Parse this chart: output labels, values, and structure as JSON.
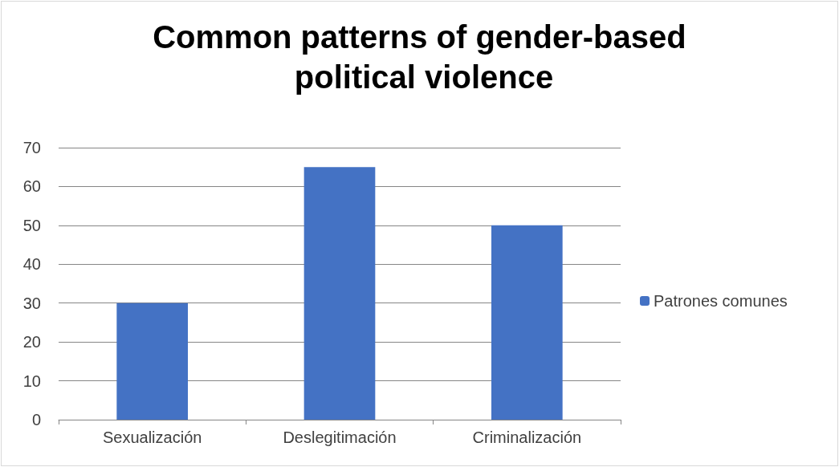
{
  "chart_data": {
    "type": "bar",
    "title": "Common patterns of gender-based political violence",
    "categories": [
      "Sexualización",
      "Deslegitimación",
      "Criminalización"
    ],
    "series": [
      {
        "name": "Patrones comunes",
        "color": "#4472c4",
        "values": [
          30,
          65,
          50
        ]
      }
    ],
    "ylim": [
      0,
      70
    ],
    "yticks": [
      0,
      10,
      20,
      30,
      40,
      50,
      60,
      70
    ],
    "grid": "y",
    "legend": "right"
  }
}
